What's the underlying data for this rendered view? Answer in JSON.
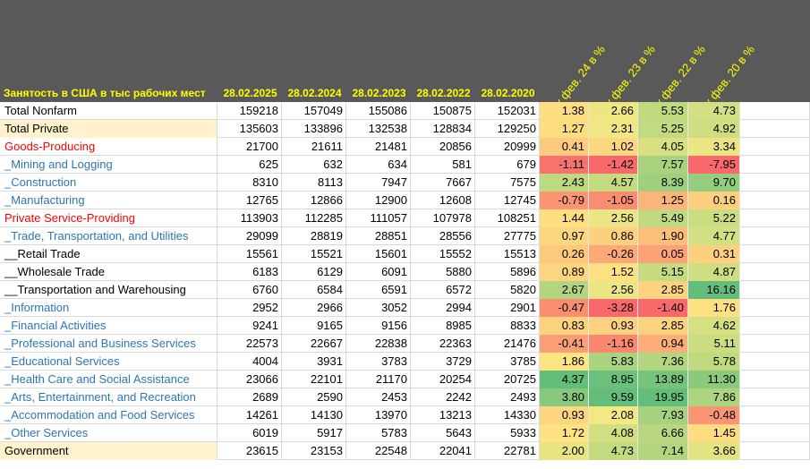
{
  "header": {
    "title": "Занятость в США в тыс рабочих мест",
    "dates": [
      "28.02.2025",
      "28.02.2024",
      "28.02.2023",
      "28.02.2022",
      "28.02.2020"
    ],
    "pct_headers": [
      "к фев. 24 в %",
      "к фев. 23 в %",
      "к фев. 22 в %",
      "к фев. 20 в %"
    ]
  },
  "rows": [
    {
      "name": "Total Nonfarm",
      "style": "black",
      "values": [
        "159218",
        "157049",
        "155086",
        "150875",
        "152031"
      ],
      "pct": [
        "1.38",
        "2.66",
        "5.53",
        "4.73"
      ],
      "colors": [
        "#fede81",
        "#ede683",
        "#bfd97f",
        "#d3df82"
      ]
    },
    {
      "name": "Total Private",
      "style": "highlight",
      "values": [
        "135603",
        "133896",
        "132538",
        "128834",
        "129250"
      ],
      "pct": [
        "1.27",
        "2.31",
        "5.25",
        "4.92"
      ],
      "colors": [
        "#fedd81",
        "#f0e784",
        "#c2da80",
        "#cfde81"
      ]
    },
    {
      "name": "Goods-Producing",
      "style": "red",
      "values": [
        "21700",
        "21611",
        "21481",
        "20856",
        "20999"
      ],
      "pct": [
        "0.41",
        "1.02",
        "4.05",
        "3.34"
      ],
      "colors": [
        "#fdcb7d",
        "#fdd680",
        "#d9e082",
        "#ece583"
      ]
    },
    {
      "name": "_Mining and Logging",
      "style": "blue",
      "values": [
        "625",
        "632",
        "634",
        "581",
        "679"
      ],
      "pct": [
        "-1.11",
        "-1.42",
        "7.57",
        "-7.95"
      ],
      "colors": [
        "#f8736d",
        "#f8696b",
        "#a9d27f",
        "#f8696b"
      ]
    },
    {
      "name": "_Construction",
      "style": "blue",
      "values": [
        "8310",
        "8113",
        "7947",
        "7667",
        "7575"
      ],
      "pct": [
        "2.43",
        "4.57",
        "8.39",
        "9.70"
      ],
      "colors": [
        "#bfd97f",
        "#c5db80",
        "#a0d07e",
        "#95cd7e"
      ]
    },
    {
      "name": "_Manufacturing",
      "style": "blue",
      "values": [
        "12765",
        "12866",
        "12900",
        "12608",
        "12745"
      ],
      "pct": [
        "-0.79",
        "-1.05",
        "1.25",
        "0.16"
      ],
      "colors": [
        "#fa9673",
        "#fa8c71",
        "#fbb57a",
        "#fdd07f"
      ]
    },
    {
      "name": "Private Service-Providing",
      "style": "red",
      "values": [
        "113903",
        "112285",
        "111057",
        "107978",
        "108251"
      ],
      "pct": [
        "1.44",
        "2.56",
        "5.49",
        "5.22"
      ],
      "colors": [
        "#fede81",
        "#ece583",
        "#c0d980",
        "#cbdd81"
      ]
    },
    {
      "name": "_Trade, Transportation, and Utilities",
      "style": "blue",
      "values": [
        "29099",
        "28819",
        "28851",
        "28556",
        "27775"
      ],
      "pct": [
        "0.97",
        "0.86",
        "1.90",
        "4.77"
      ],
      "colors": [
        "#fdd680",
        "#fdd07f",
        "#fbbf7b",
        "#d2df82"
      ]
    },
    {
      "name": "__Retail Trade",
      "style": "black",
      "values": [
        "15561",
        "15521",
        "15601",
        "15552",
        "15513"
      ],
      "pct": [
        "0.26",
        "-0.26",
        "0.05",
        "0.31"
      ],
      "colors": [
        "#fdc97d",
        "#fbaa77",
        "#fba376",
        "#fdd07f"
      ]
    },
    {
      "name": "__Wholesale Trade",
      "style": "black",
      "values": [
        "6183",
        "6129",
        "6091",
        "5880",
        "5896"
      ],
      "pct": [
        "0.89",
        "1.52",
        "5.15",
        "4.87"
      ],
      "colors": [
        "#fdd480",
        "#fde081",
        "#c6db80",
        "#d0de82"
      ]
    },
    {
      "name": "__Transportation and Warehousing",
      "style": "black",
      "values": [
        "6760",
        "6584",
        "6591",
        "6572",
        "5820"
      ],
      "pct": [
        "2.67",
        "2.56",
        "2.85",
        "16.16"
      ],
      "colors": [
        "#b4d57f",
        "#ece583",
        "#fdd27f",
        "#63be7b"
      ]
    },
    {
      "name": "_Information",
      "style": "blue",
      "values": [
        "2952",
        "2966",
        "3052",
        "2994",
        "2901"
      ],
      "pct": [
        "-0.47",
        "-3.28",
        "-1.40",
        "1.76"
      ],
      "colors": [
        "#f98e71",
        "#f8696b",
        "#f8696b",
        "#fedf81"
      ]
    },
    {
      "name": "_Financial Activities",
      "style": "blue",
      "values": [
        "9241",
        "9165",
        "9156",
        "8985",
        "8833"
      ],
      "pct": [
        "0.83",
        "0.93",
        "2.85",
        "4.62"
      ],
      "colors": [
        "#fdd37f",
        "#fdd17f",
        "#fdd27f",
        "#d6e082"
      ]
    },
    {
      "name": "_Professional and Business Services",
      "style": "blue",
      "values": [
        "22573",
        "22667",
        "22838",
        "22363",
        "21476"
      ],
      "pct": [
        "-0.41",
        "-1.16",
        "0.94",
        "5.11"
      ],
      "colors": [
        "#fa9e75",
        "#fa8870",
        "#fbae78",
        "#cbdd81"
      ]
    },
    {
      "name": "_Educational Services",
      "style": "blue",
      "values": [
        "4004",
        "3931",
        "3783",
        "3729",
        "3785"
      ],
      "pct": [
        "1.86",
        "5.83",
        "7.36",
        "5.78"
      ],
      "colors": [
        "#fee482",
        "#aad37f",
        "#b2d57f",
        "#bfd97f"
      ]
    },
    {
      "name": "_Health Care and Social Assistance",
      "style": "blue",
      "values": [
        "23066",
        "22101",
        "21170",
        "20254",
        "20725"
      ],
      "pct": [
        "4.37",
        "8.95",
        "13.89",
        "11.30"
      ],
      "colors": [
        "#63be7b",
        "#6ac07c",
        "#76c37c",
        "#8bca7d"
      ]
    },
    {
      "name": "_Arts, Entertainment, and Recreation",
      "style": "blue",
      "values": [
        "2689",
        "2590",
        "2453",
        "2242",
        "2493"
      ],
      "pct": [
        "3.80",
        "9.59",
        "19.95",
        "7.86"
      ],
      "colors": [
        "#87c87d",
        "#63be7b",
        "#63be7b",
        "#aed47f"
      ]
    },
    {
      "name": "_Accommodation and Food Services",
      "style": "blue",
      "values": [
        "14261",
        "14130",
        "13970",
        "13213",
        "14330"
      ],
      "pct": [
        "0.93",
        "2.08",
        "7.93",
        "-0.48"
      ],
      "colors": [
        "#fdd680",
        "#f3e884",
        "#a6d17f",
        "#fa9673"
      ]
    },
    {
      "name": "_Other Services",
      "style": "blue",
      "values": [
        "6019",
        "5917",
        "5783",
        "5643",
        "5933"
      ],
      "pct": [
        "1.72",
        "4.08",
        "6.66",
        "1.45"
      ],
      "colors": [
        "#fee181",
        "#d1de82",
        "#b9d780",
        "#fedc81"
      ]
    },
    {
      "name": "Government",
      "style": "highlight",
      "values": [
        "23615",
        "23153",
        "22548",
        "22041",
        "22781"
      ],
      "pct": [
        "2.00",
        "4.73",
        "7.14",
        "3.66"
      ],
      "colors": [
        "#e8e483",
        "#c4da80",
        "#b4d57f",
        "#e3e383"
      ]
    }
  ]
}
